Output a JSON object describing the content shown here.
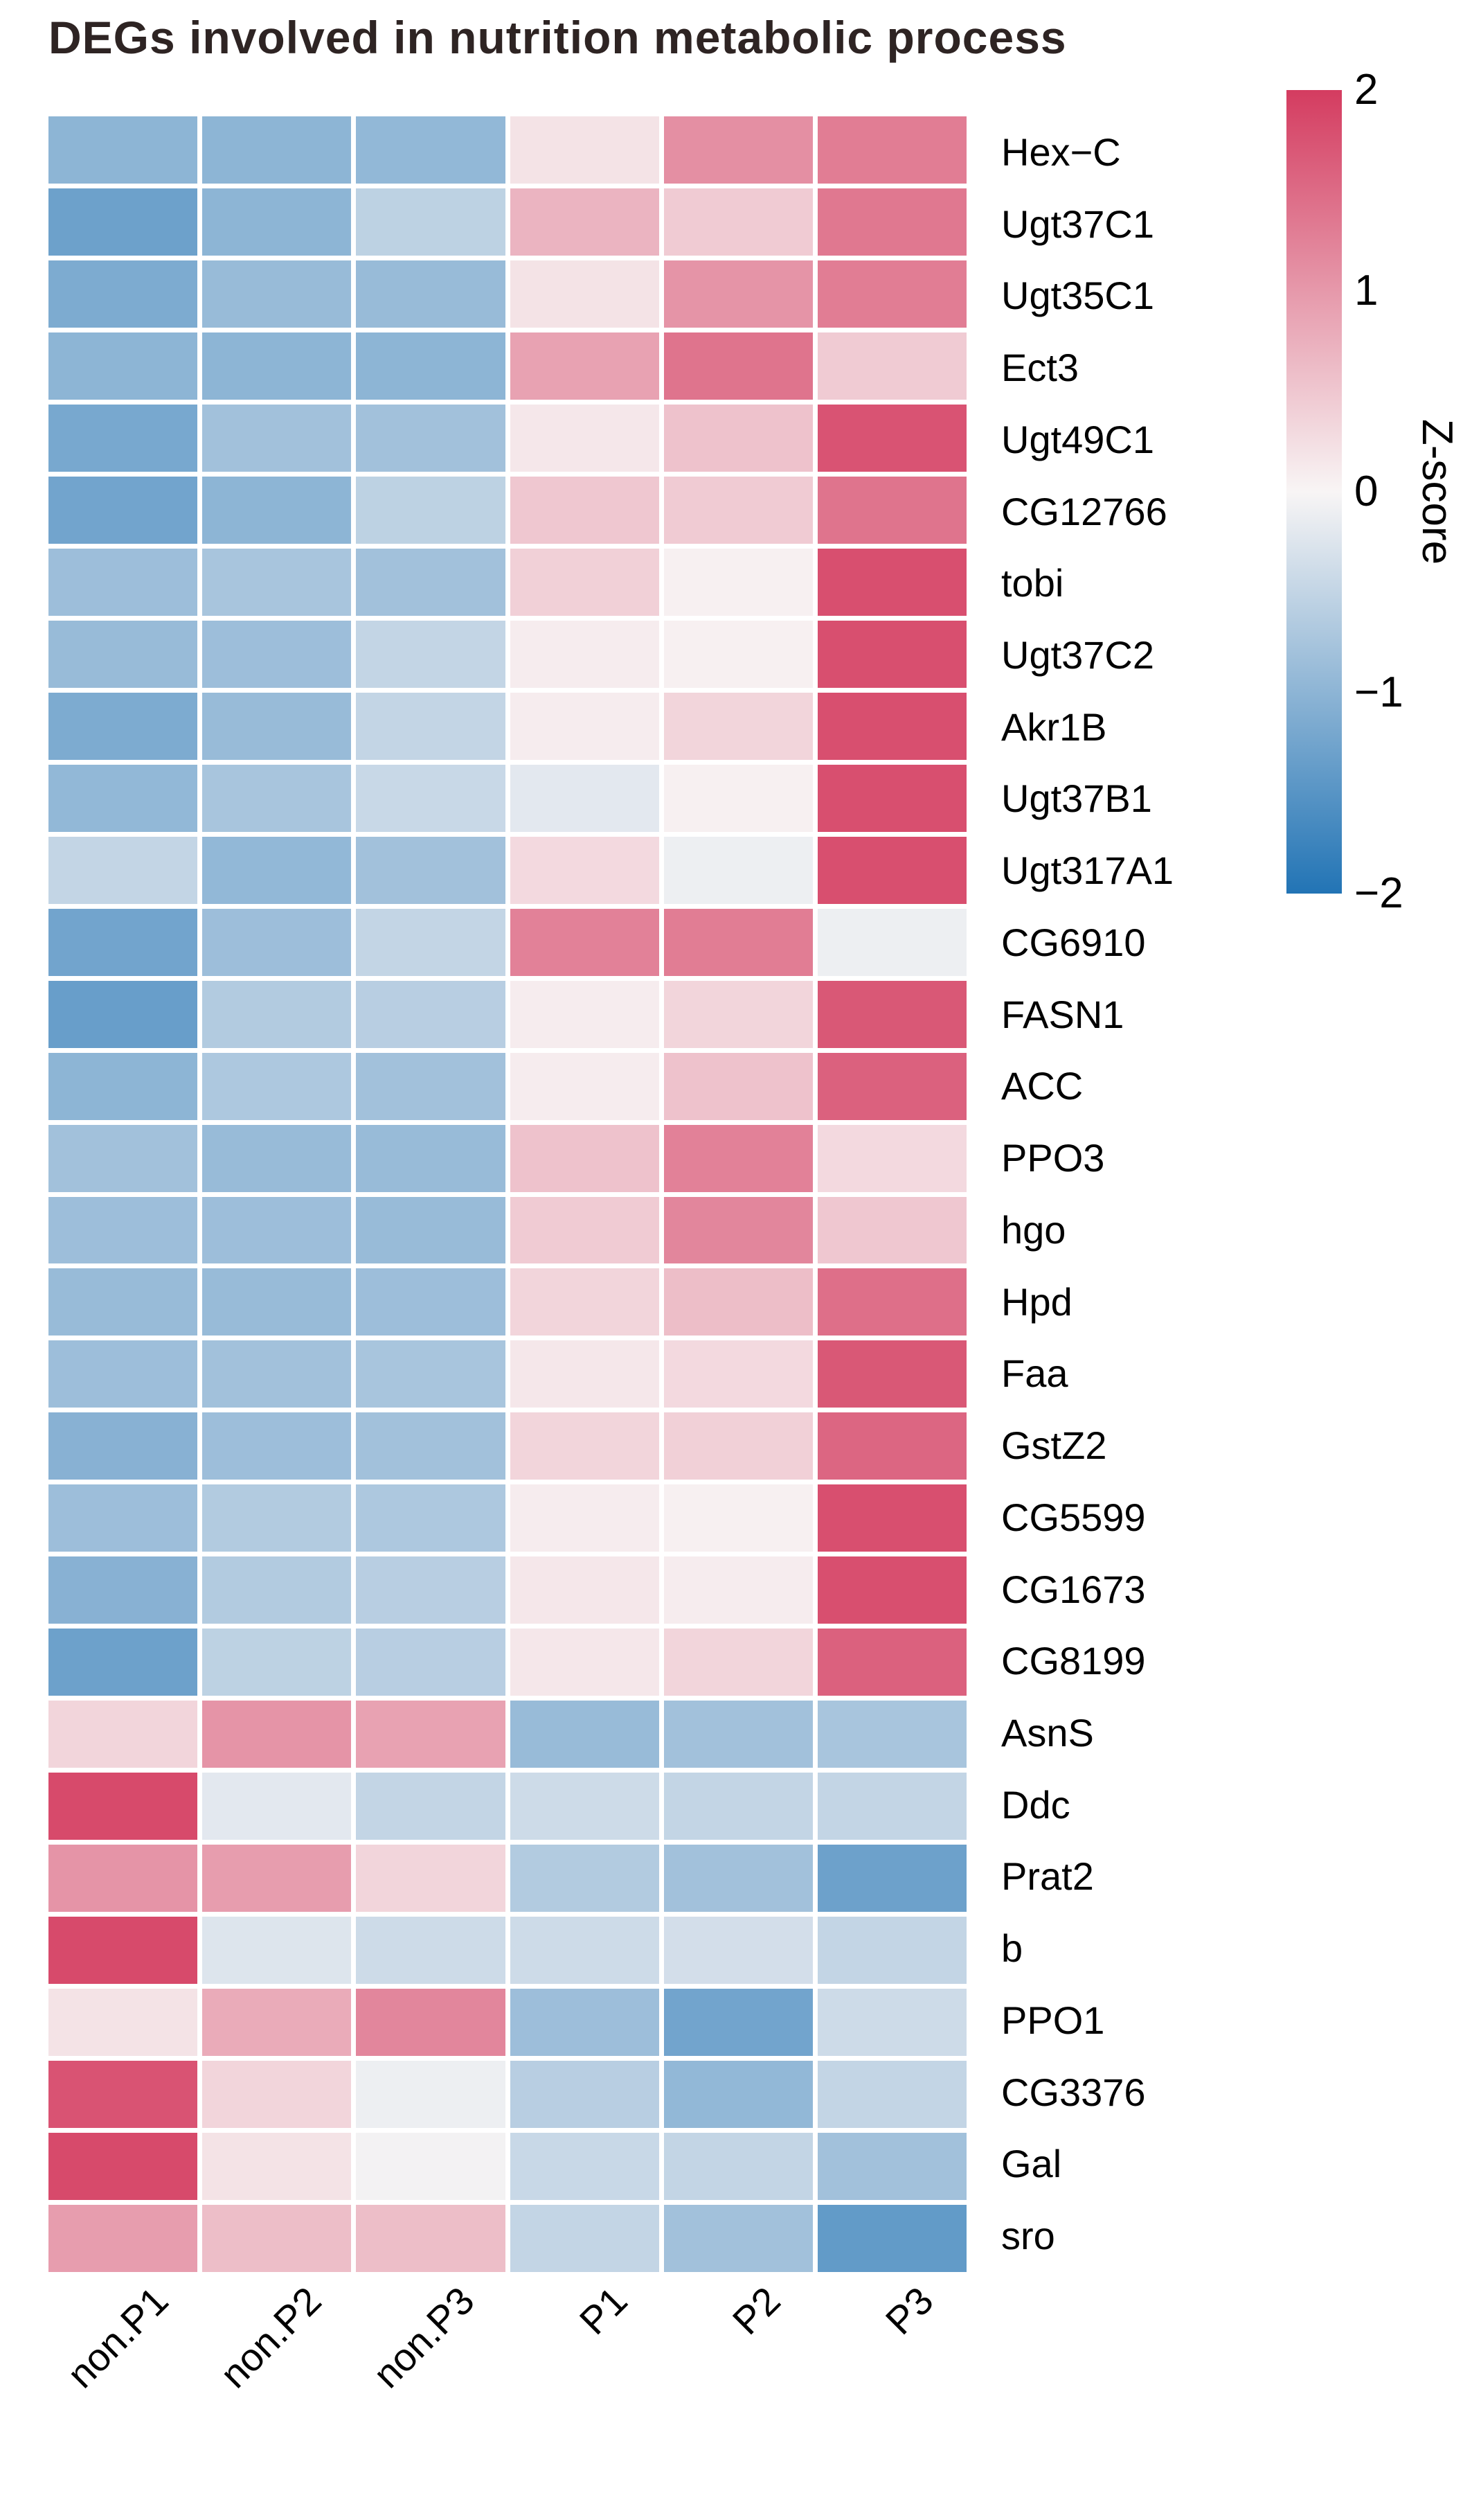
{
  "chart_data": {
    "type": "heatmap",
    "title": "DEGs involved in nutrition metabolic process",
    "columns": [
      "non.P1",
      "non.P2",
      "non.P3",
      "P1",
      "P2",
      "P3"
    ],
    "rows": [
      "Hex−C",
      "Ugt37C1",
      "Ugt35C1",
      "Ect3",
      "Ugt49C1",
      "CG12766",
      "tobi",
      "Ugt37C2",
      "Akr1B",
      "Ugt37B1",
      "Ugt317A1",
      "CG6910",
      "FASN1",
      "ACC",
      "PPO3",
      "hgo",
      "Hpd",
      "Faa",
      "GstZ2",
      "CG5599",
      "CG1673",
      "CG8199",
      "AsnS",
      "Ddc",
      "Prat2",
      "b",
      "PPO1",
      "CG3376",
      "Gal",
      "sro"
    ],
    "values": [
      [
        -1.0,
        -1.0,
        -0.95,
        0.2,
        1.1,
        1.3
      ],
      [
        -1.3,
        -1.0,
        -0.55,
        0.7,
        0.45,
        1.35
      ],
      [
        -1.15,
        -0.9,
        -0.9,
        0.2,
        1.05,
        1.3
      ],
      [
        -1.0,
        -1.0,
        -1.0,
        0.9,
        1.4,
        0.45
      ],
      [
        -1.2,
        -0.8,
        -0.8,
        0.15,
        0.55,
        1.75
      ],
      [
        -1.25,
        -1.0,
        -0.55,
        0.5,
        0.45,
        1.4
      ],
      [
        -0.85,
        -0.75,
        -0.8,
        0.4,
        0.05,
        1.8
      ],
      [
        -0.9,
        -0.85,
        -0.5,
        0.1,
        0.05,
        1.8
      ],
      [
        -1.15,
        -0.9,
        -0.5,
        0.1,
        0.35,
        1.8
      ],
      [
        -0.95,
        -0.75,
        -0.45,
        -0.2,
        0.05,
        1.8
      ],
      [
        -0.5,
        -0.95,
        -0.8,
        0.3,
        -0.1,
        1.8
      ],
      [
        -1.25,
        -0.85,
        -0.5,
        1.25,
        1.3,
        -0.1
      ],
      [
        -1.35,
        -0.65,
        -0.6,
        0.1,
        0.35,
        1.7
      ],
      [
        -1.0,
        -0.7,
        -0.8,
        0.1,
        0.55,
        1.6
      ],
      [
        -0.8,
        -0.9,
        -0.9,
        0.55,
        1.25,
        0.3
      ],
      [
        -0.85,
        -0.85,
        -0.9,
        0.45,
        1.2,
        0.5
      ],
      [
        -0.9,
        -0.9,
        -0.85,
        0.35,
        0.6,
        1.45
      ],
      [
        -0.85,
        -0.8,
        -0.75,
        0.15,
        0.3,
        1.7
      ],
      [
        -1.05,
        -0.85,
        -0.8,
        0.35,
        0.4,
        1.55
      ],
      [
        -0.85,
        -0.65,
        -0.7,
        0.1,
        0.05,
        1.8
      ],
      [
        -1.05,
        -0.65,
        -0.6,
        0.15,
        0.1,
        1.8
      ],
      [
        -1.3,
        -0.55,
        -0.6,
        0.15,
        0.35,
        1.6
      ],
      [
        0.35,
        1.05,
        0.9,
        -0.9,
        -0.8,
        -0.75
      ],
      [
        1.85,
        -0.2,
        -0.5,
        -0.4,
        -0.5,
        -0.5
      ],
      [
        1.05,
        0.95,
        0.35,
        -0.65,
        -0.8,
        -1.3
      ],
      [
        1.85,
        -0.25,
        -0.4,
        -0.4,
        -0.35,
        -0.5
      ],
      [
        0.2,
        0.8,
        1.2,
        -0.85,
        -1.25,
        -0.4
      ],
      [
        1.75,
        0.35,
        -0.1,
        -0.6,
        -0.95,
        -0.5
      ],
      [
        1.85,
        0.2,
        -0.05,
        -0.45,
        -0.5,
        -0.8
      ],
      [
        0.95,
        0.6,
        0.6,
        -0.5,
        -0.8,
        -1.4
      ]
    ],
    "colorbar": {
      "label": "Z-score",
      "tick_labels": [
        "2",
        "1",
        "0",
        "−1",
        "−2"
      ],
      "tick_values": [
        2,
        1,
        0,
        -1,
        -2
      ],
      "domain": [
        -2,
        2
      ],
      "color_max": "#d43c60",
      "color_mid": "#f8f5f5",
      "color_min": "#2274b5"
    },
    "layout_hints": {
      "legend_position": "right",
      "grid": "white gaps between cells",
      "column_label_rotation_deg": 45
    }
  }
}
